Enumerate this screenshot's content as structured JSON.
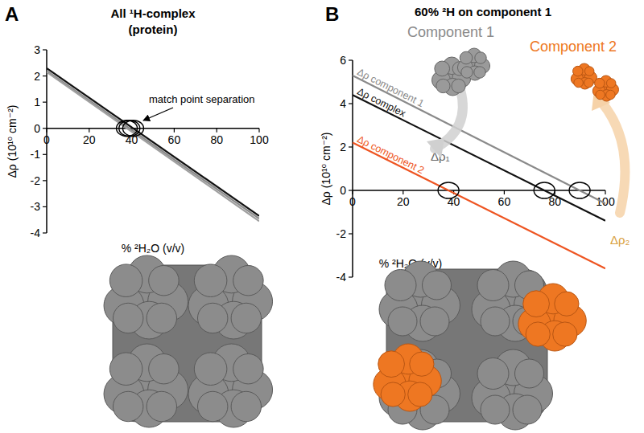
{
  "chart_data": [
    {
      "type": "line",
      "panel_label": "A",
      "title": "All ¹H-complex",
      "subtitle": "(protein)",
      "x_label": "% ²H₂O (v/v)",
      "y_label": "Δρ (10¹⁰ cm⁻²)",
      "annotations": [
        "match point separation"
      ],
      "x": [
        0,
        100
      ],
      "xlim": [
        0,
        100
      ],
      "xticks": [
        0,
        20,
        40,
        60,
        80,
        100
      ],
      "ylim": [
        -4,
        3
      ],
      "yticks": [
        -4,
        -3,
        -2,
        -1,
        0,
        1,
        2,
        3
      ],
      "grid": false,
      "series": [
        {
          "color": "#8a8a8a",
          "values": [
            2.2,
            -3.45
          ]
        },
        {
          "color": "#a0a0a0",
          "values": [
            2.15,
            -3.55
          ]
        },
        {
          "color": "#111111",
          "values": [
            2.3,
            -3.35
          ]
        }
      ]
    },
    {
      "type": "line",
      "panel_label": "B",
      "title": "60% ²H on component 1",
      "x_label": "% ²H₂O (v/v)",
      "y_label": "Δρ (10¹⁰ cm⁻²)",
      "annotations": [
        "Component 1",
        "Component 2",
        "Δρ₁",
        "Δρ₂"
      ],
      "x": [
        0,
        100
      ],
      "xlim": [
        0,
        100
      ],
      "xticks": [
        0,
        20,
        40,
        60,
        80,
        100
      ],
      "ylim": [
        -4,
        6
      ],
      "yticks": [
        -4,
        -2,
        0,
        2,
        4,
        6
      ],
      "grid": false,
      "series": [
        {
          "name": "Δρ component 1",
          "color": "#8a8a8a",
          "values": [
            5.3,
            -0.6
          ]
        },
        {
          "name": "Δρ complex",
          "color": "#111111",
          "values": [
            4.4,
            -1.4
          ]
        },
        {
          "name": "Δρ component 2",
          "color": "#ee5522",
          "values": [
            2.2,
            -3.6
          ]
        }
      ]
    }
  ]
}
